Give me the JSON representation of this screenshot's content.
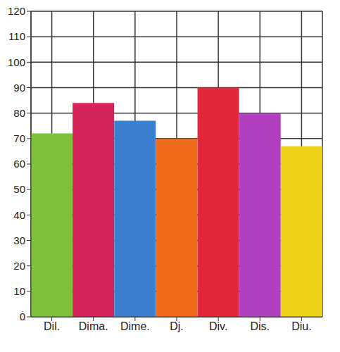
{
  "chart_data": {
    "type": "bar",
    "categories": [
      "Dil.",
      "Dima.",
      "Dime.",
      "Dj.",
      "Div.",
      "Dis.",
      "Diu."
    ],
    "values": [
      72,
      84,
      77,
      70,
      90,
      80,
      67
    ],
    "colors": [
      "#7dc23a",
      "#d4245a",
      "#3a7fd0",
      "#f06a1c",
      "#e0283a",
      "#b040c0",
      "#f2d31c"
    ],
    "ylim": [
      0,
      120
    ],
    "yticks": [
      0,
      10,
      20,
      30,
      40,
      50,
      60,
      70,
      80,
      90,
      100,
      110,
      120
    ],
    "grid": true
  }
}
